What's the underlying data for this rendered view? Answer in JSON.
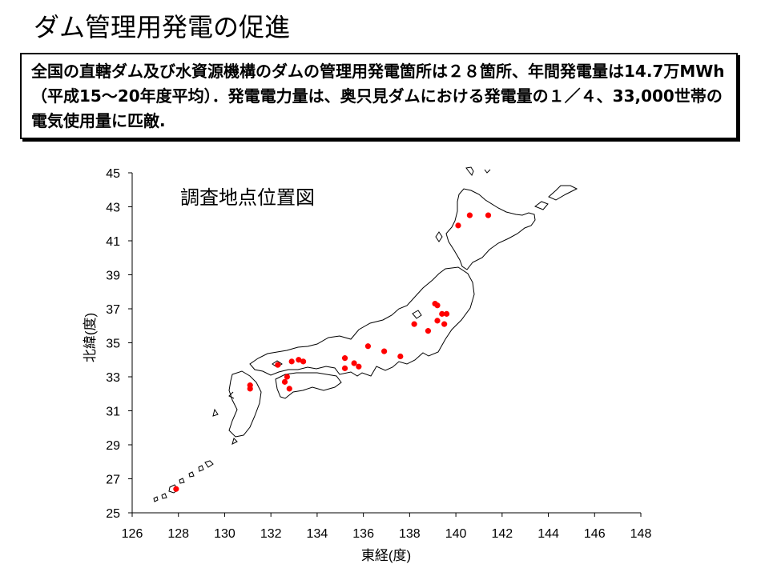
{
  "title": "ダム管理用発電の促進",
  "summary": "全国の直轄ダム及び水資源機構のダムの管理用発電箇所は２８箇所、年間発電量は14.7万MWh（平成15～20年度平均）．発電電力量は、奥只見ダムにおける発電量の１／４、33,000世帯の電気使用量に匹敵.",
  "chart_data": {
    "type": "scatter",
    "title": "調査地点位置図",
    "xlabel": "東経(度)",
    "ylabel": "北緯(度)",
    "xlim": [
      126,
      148
    ],
    "ylim": [
      25,
      45
    ],
    "xticks": [
      126,
      128,
      130,
      132,
      134,
      136,
      138,
      140,
      142,
      144,
      146,
      148
    ],
    "yticks": [
      25,
      27,
      29,
      31,
      33,
      35,
      37,
      39,
      41,
      43,
      45
    ],
    "grid": false,
    "point_color": "#ff0000",
    "series": [
      {
        "points": [
          {
            "x": 127.9,
            "y": 26.4
          },
          {
            "x": 131.1,
            "y": 32.5
          },
          {
            "x": 131.1,
            "y": 32.3
          },
          {
            "x": 132.3,
            "y": 33.7
          },
          {
            "x": 132.6,
            "y": 32.7
          },
          {
            "x": 132.8,
            "y": 32.3
          },
          {
            "x": 132.7,
            "y": 33.0
          },
          {
            "x": 132.9,
            "y": 33.9
          },
          {
            "x": 133.2,
            "y": 34.0
          },
          {
            "x": 133.4,
            "y": 33.9
          },
          {
            "x": 135.2,
            "y": 34.1
          },
          {
            "x": 135.2,
            "y": 33.5
          },
          {
            "x": 135.6,
            "y": 33.8
          },
          {
            "x": 135.8,
            "y": 33.6
          },
          {
            "x": 136.2,
            "y": 34.8
          },
          {
            "x": 136.9,
            "y": 34.5
          },
          {
            "x": 137.6,
            "y": 34.2
          },
          {
            "x": 138.2,
            "y": 36.1
          },
          {
            "x": 138.8,
            "y": 35.7
          },
          {
            "x": 139.1,
            "y": 37.3
          },
          {
            "x": 139.2,
            "y": 37.2
          },
          {
            "x": 139.2,
            "y": 36.3
          },
          {
            "x": 139.4,
            "y": 36.7
          },
          {
            "x": 139.6,
            "y": 36.7
          },
          {
            "x": 139.5,
            "y": 36.1
          },
          {
            "x": 140.1,
            "y": 41.9
          },
          {
            "x": 140.6,
            "y": 42.5
          },
          {
            "x": 141.4,
            "y": 42.5
          }
        ]
      }
    ]
  }
}
